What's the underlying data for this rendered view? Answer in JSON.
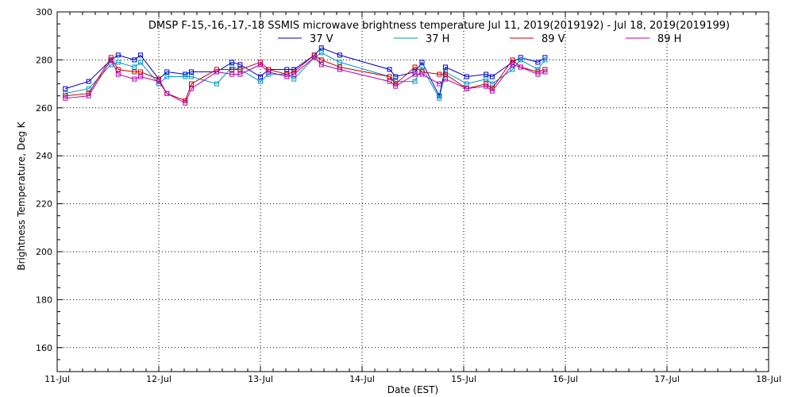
{
  "chart_data": {
    "type": "line",
    "title": "DMSP F-15,-16,-17,-18 SSMIS microwave brightness temperature Jul 11, 2019(2019192) - Jul 18, 2019(2019199)",
    "xlabel": "Date (EST)",
    "ylabel": "Brightness Temperature, Deg K",
    "ylim": [
      150,
      300
    ],
    "yticks": [
      160,
      180,
      200,
      220,
      240,
      260,
      280,
      300
    ],
    "xlim_days": [
      11,
      18
    ],
    "xtick_labels": [
      "11-Jul",
      "12-Jul",
      "13-Jul",
      "14-Jul",
      "15-Jul",
      "16-Jul",
      "17-Jul",
      "18-Jul"
    ],
    "grid": true,
    "legend_position": "top-center",
    "series": [
      {
        "name": "37 V",
        "color": "#0000c8",
        "points": [
          [
            11.08,
            268
          ],
          [
            11.31,
            271
          ],
          [
            11.53,
            280
          ],
          [
            11.6,
            282
          ],
          [
            11.76,
            280
          ],
          [
            11.82,
            282
          ],
          [
            12.0,
            272
          ],
          [
            12.08,
            275
          ],
          [
            12.26,
            274
          ],
          [
            12.32,
            275
          ],
          [
            12.57,
            275
          ],
          [
            12.72,
            279
          ],
          [
            12.8,
            278
          ],
          [
            13.0,
            273
          ],
          [
            13.08,
            276
          ],
          [
            13.26,
            276
          ],
          [
            13.33,
            276
          ],
          [
            13.53,
            282
          ],
          [
            13.6,
            285
          ],
          [
            13.78,
            282
          ],
          [
            14.27,
            276
          ],
          [
            14.33,
            273
          ],
          [
            14.52,
            275
          ],
          [
            14.59,
            279
          ],
          [
            14.76,
            265
          ],
          [
            14.82,
            277
          ],
          [
            15.03,
            273
          ],
          [
            15.22,
            274
          ],
          [
            15.28,
            273
          ],
          [
            15.48,
            279
          ],
          [
            15.56,
            281
          ],
          [
            15.73,
            279
          ],
          [
            15.8,
            281
          ]
        ]
      },
      {
        "name": "37 H",
        "color": "#0096c8",
        "points": [
          [
            11.08,
            266
          ],
          [
            11.31,
            268
          ],
          [
            11.53,
            278
          ],
          [
            11.6,
            279
          ],
          [
            11.76,
            277
          ],
          [
            11.82,
            279
          ],
          [
            12.0,
            270
          ],
          [
            12.08,
            273
          ],
          [
            12.26,
            273
          ],
          [
            12.32,
            273
          ],
          [
            12.57,
            270
          ],
          [
            12.72,
            277
          ],
          [
            12.8,
            276
          ],
          [
            13.0,
            271
          ],
          [
            13.08,
            274
          ],
          [
            13.26,
            274
          ],
          [
            13.33,
            272
          ],
          [
            13.53,
            281
          ],
          [
            13.6,
            283
          ],
          [
            13.78,
            279
          ],
          [
            14.27,
            273
          ],
          [
            14.33,
            271
          ],
          [
            14.52,
            271
          ],
          [
            14.59,
            277
          ],
          [
            14.76,
            264
          ],
          [
            14.82,
            275
          ],
          [
            15.03,
            270
          ],
          [
            15.22,
            272
          ],
          [
            15.28,
            270
          ],
          [
            15.48,
            276
          ],
          [
            15.56,
            280
          ],
          [
            15.73,
            276
          ],
          [
            15.8,
            280
          ]
        ]
      },
      {
        "name": "89 V",
        "color": "#c80000",
        "points": [
          [
            11.08,
            265
          ],
          [
            11.31,
            266
          ],
          [
            11.53,
            281
          ],
          [
            11.6,
            276
          ],
          [
            11.76,
            275
          ],
          [
            11.82,
            275
          ],
          [
            12.0,
            272
          ],
          [
            12.08,
            266
          ],
          [
            12.26,
            263
          ],
          [
            12.32,
            270
          ],
          [
            12.57,
            276
          ],
          [
            12.72,
            276
          ],
          [
            12.8,
            276
          ],
          [
            13.0,
            279
          ],
          [
            13.08,
            276
          ],
          [
            13.26,
            274
          ],
          [
            13.33,
            275
          ],
          [
            13.53,
            282
          ],
          [
            13.6,
            280
          ],
          [
            13.78,
            277
          ],
          [
            14.27,
            273
          ],
          [
            14.33,
            270
          ],
          [
            14.52,
            277
          ],
          [
            14.59,
            275
          ],
          [
            14.76,
            274
          ],
          [
            14.82,
            274
          ],
          [
            15.03,
            268
          ],
          [
            15.22,
            270
          ],
          [
            15.28,
            268
          ],
          [
            15.48,
            280
          ],
          [
            15.56,
            277
          ],
          [
            15.73,
            275
          ],
          [
            15.8,
            276
          ]
        ]
      },
      {
        "name": "89 H",
        "color": "#b400b4",
        "points": [
          [
            11.08,
            264
          ],
          [
            11.31,
            265
          ],
          [
            11.53,
            280
          ],
          [
            11.6,
            274
          ],
          [
            11.76,
            272
          ],
          [
            11.82,
            273
          ],
          [
            12.0,
            271
          ],
          [
            12.08,
            266
          ],
          [
            12.26,
            262
          ],
          [
            12.32,
            268
          ],
          [
            12.57,
            275
          ],
          [
            12.72,
            274
          ],
          [
            12.8,
            274
          ],
          [
            13.0,
            278
          ],
          [
            13.08,
            275
          ],
          [
            13.26,
            273
          ],
          [
            13.33,
            274
          ],
          [
            13.53,
            281
          ],
          [
            13.6,
            278
          ],
          [
            13.78,
            276
          ],
          [
            14.27,
            271
          ],
          [
            14.33,
            269
          ],
          [
            14.52,
            274
          ],
          [
            14.59,
            274
          ],
          [
            14.76,
            270
          ],
          [
            14.82,
            272
          ],
          [
            15.03,
            268
          ],
          [
            15.22,
            269
          ],
          [
            15.28,
            267
          ],
          [
            15.48,
            278
          ],
          [
            15.56,
            277
          ],
          [
            15.73,
            274
          ],
          [
            15.8,
            275
          ]
        ]
      }
    ]
  }
}
